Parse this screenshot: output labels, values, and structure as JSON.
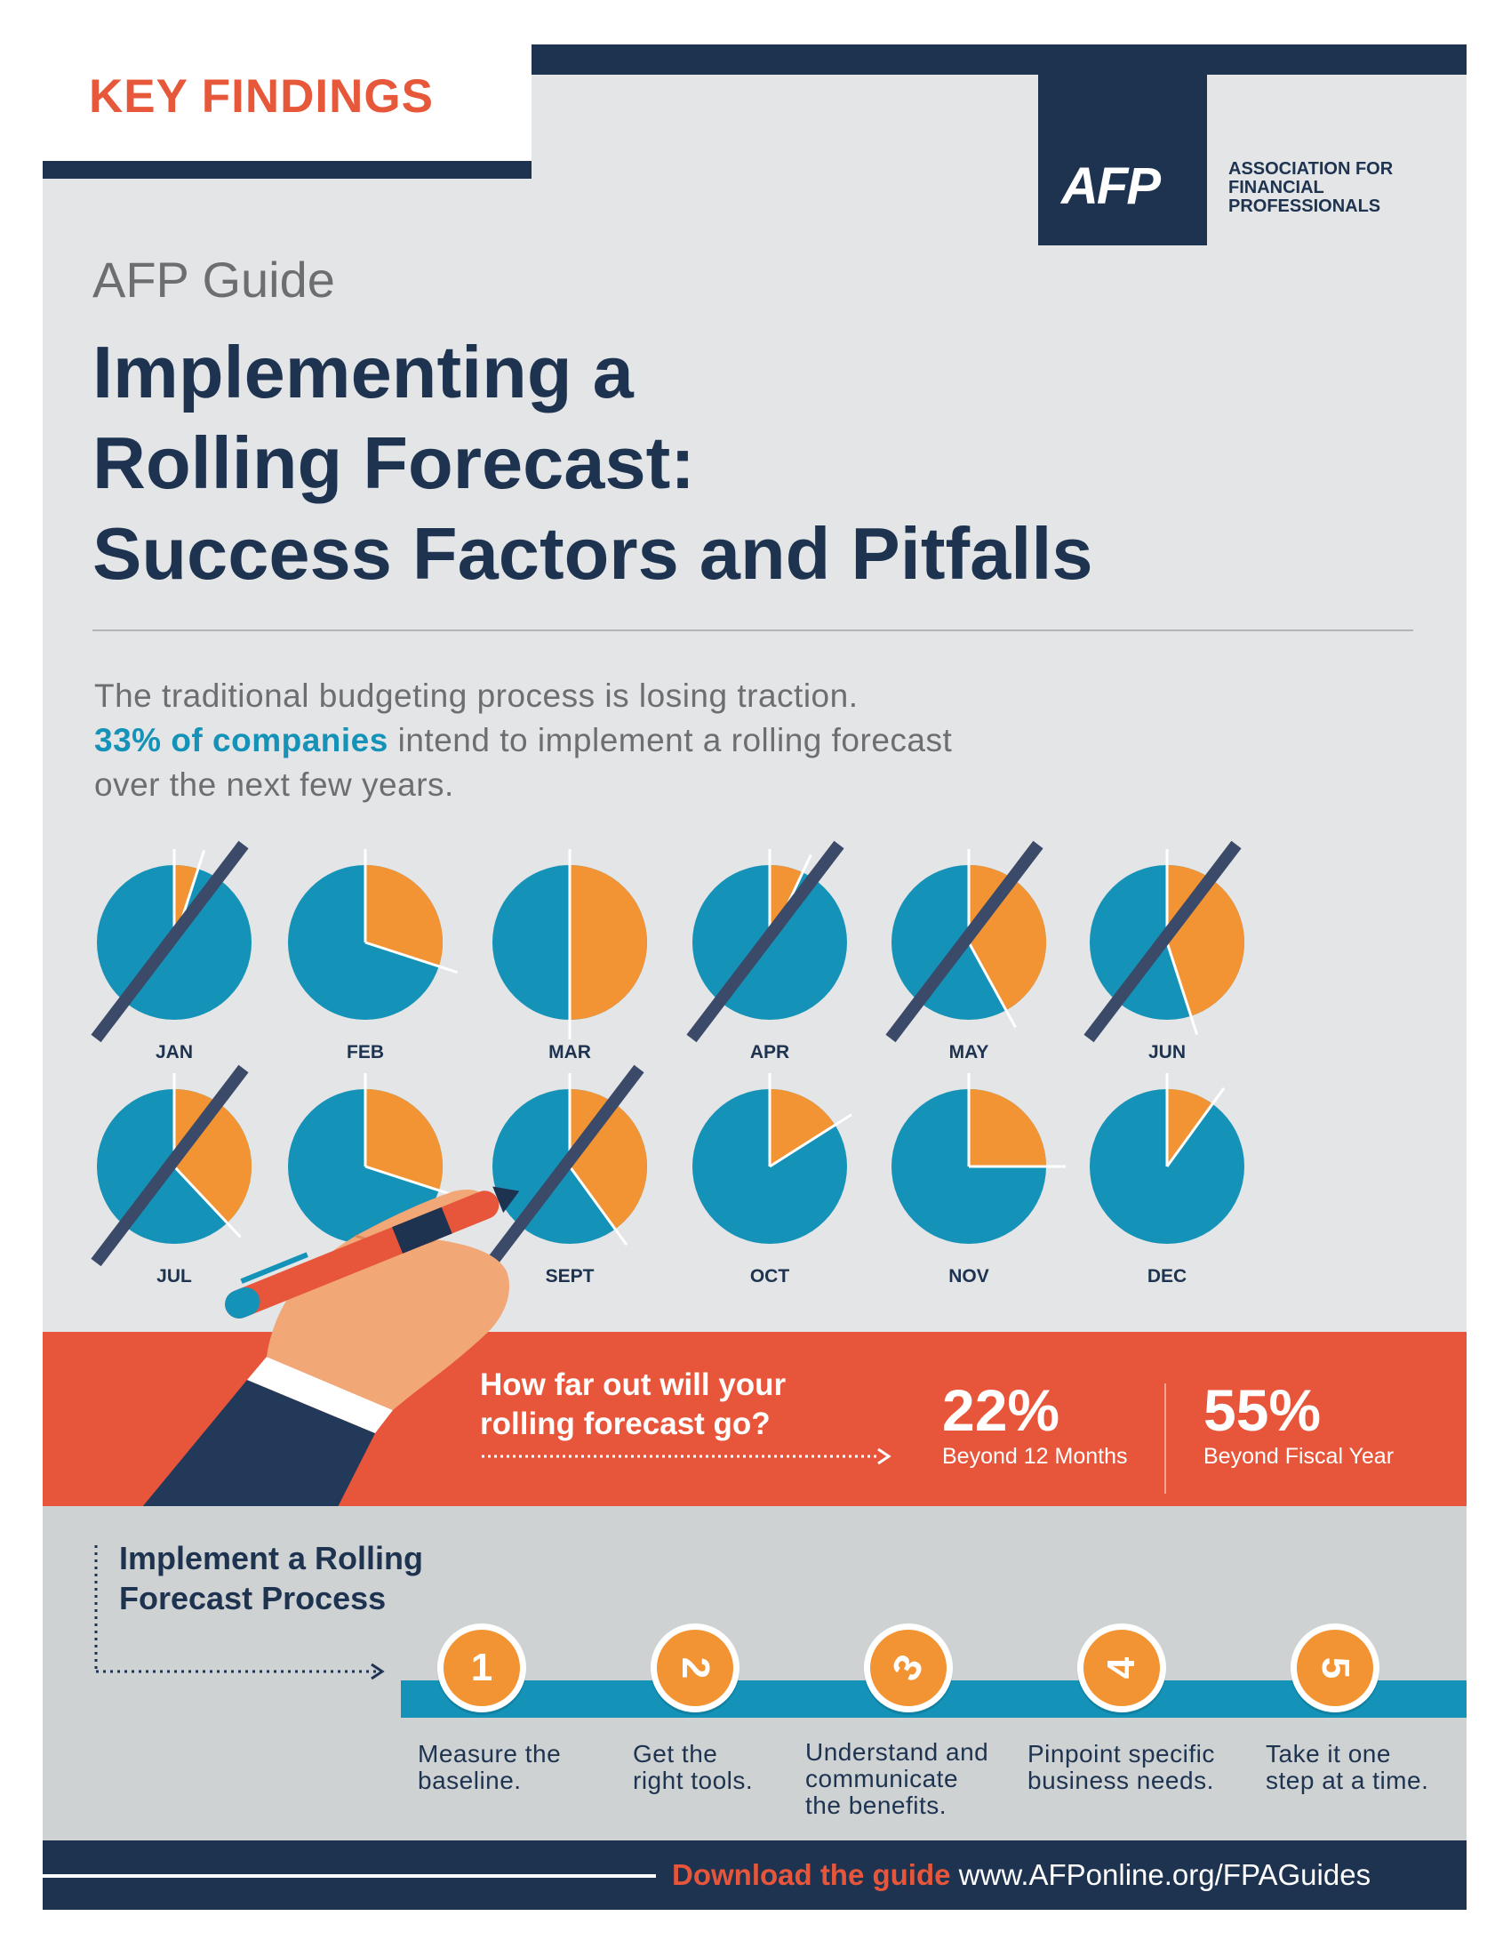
{
  "header": {
    "section_label": "KEY FINDINGS",
    "logo_text": "AFP",
    "org_name_lines": [
      "ASSOCIATION FOR",
      "FINANCIAL",
      "PROFESSIONALS"
    ]
  },
  "guide_label": "AFP Guide",
  "title_lines": [
    "Implementing a",
    "Rolling Forecast:",
    "Success Factors and Pitfalls"
  ],
  "intro": {
    "line1": "The traditional budgeting process is losing traction.",
    "highlight": "33% of companies",
    "line2_rest": " intend to implement a rolling forecast",
    "line3": "over the next few years."
  },
  "months": [
    {
      "label": "JAN",
      "fraction": 0.05,
      "crossed": true
    },
    {
      "label": "FEB",
      "fraction": 0.3,
      "crossed": false
    },
    {
      "label": "MAR",
      "fraction": 0.5,
      "crossed": false
    },
    {
      "label": "APR",
      "fraction": 0.07,
      "crossed": true
    },
    {
      "label": "MAY",
      "fraction": 0.42,
      "crossed": true
    },
    {
      "label": "JUN",
      "fraction": 0.45,
      "crossed": true
    },
    {
      "label": "JUL",
      "fraction": 0.38,
      "crossed": true
    },
    {
      "label": "",
      "fraction": 0.3,
      "crossed": false
    },
    {
      "label": "SEPT",
      "fraction": 0.4,
      "crossed": true
    },
    {
      "label": "OCT",
      "fraction": 0.16,
      "crossed": false
    },
    {
      "label": "NOV",
      "fraction": 0.25,
      "crossed": false
    },
    {
      "label": "DEC",
      "fraction": 0.1,
      "crossed": false
    }
  ],
  "forecast_question": {
    "lines": [
      "How far out will your",
      "rolling forecast go?"
    ],
    "stats": [
      {
        "value": "22%",
        "label": "Beyond 12 Months"
      },
      {
        "value": "55%",
        "label": "Beyond Fiscal Year"
      }
    ]
  },
  "process": {
    "title_lines": [
      "Implement a Rolling",
      "Forecast Process"
    ],
    "steps": [
      {
        "number": "1",
        "lines": [
          "Measure the",
          "baseline."
        ]
      },
      {
        "number": "2",
        "lines": [
          "Get the",
          "right tools."
        ]
      },
      {
        "number": "3",
        "lines": [
          "Understand and",
          "communicate",
          "the benefits."
        ]
      },
      {
        "number": "4",
        "lines": [
          "Pinpoint specific",
          "business needs."
        ]
      },
      {
        "number": "5",
        "lines": [
          "Take it one",
          "step at a time."
        ]
      }
    ]
  },
  "footer": {
    "cta": "Download the guide",
    "url": "www.AFPonline.org/FPAGuides"
  },
  "colors": {
    "navy": "#1e3350",
    "orange_red": "#e7563a",
    "pie_blue": "#1492b8",
    "pie_orange": "#f39434",
    "strike": "#3b4a68"
  }
}
